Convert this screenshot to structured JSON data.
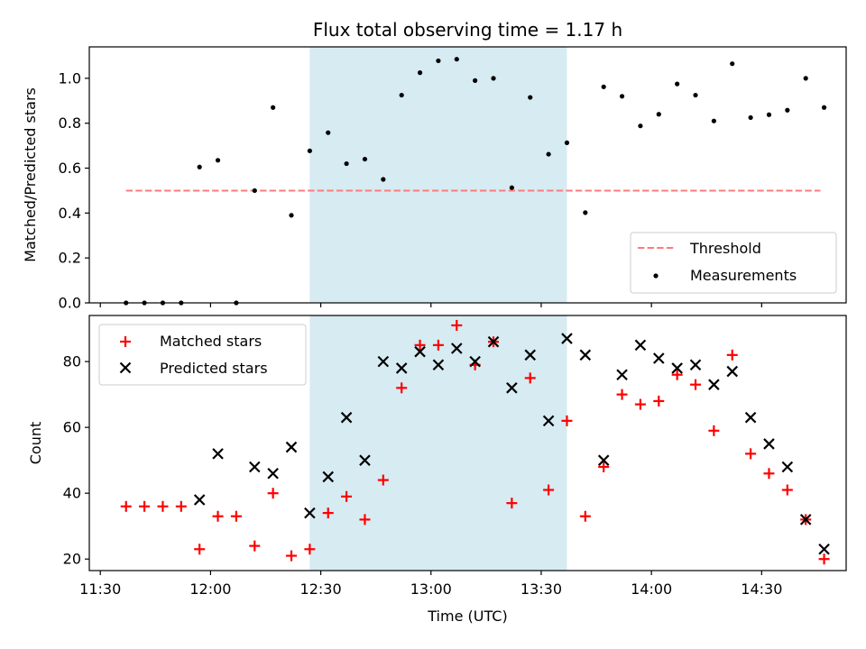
{
  "chart_data": [
    {
      "type": "scatter",
      "title": "Flux total observing time = 1.17 h",
      "xlabel": "",
      "ylabel": "Matched/Predicted stars",
      "xlim": [
        "11:27",
        "14:53"
      ],
      "ylim": [
        0,
        1.14
      ],
      "xticks": [
        "11:30",
        "12:00",
        "12:30",
        "13:00",
        "13:30",
        "14:00",
        "14:30"
      ],
      "yticks": [
        "0.0",
        "0.2",
        "0.4",
        "0.6",
        "0.8",
        "1.0"
      ],
      "shaded_region": {
        "start": "12:27",
        "end": "13:37",
        "color": "#add8e6"
      },
      "legend_position": "lower right",
      "threshold": {
        "name": "Threshold",
        "value": 0.5,
        "x_range": [
          "11:37",
          "14:46"
        ],
        "color": "#ff7b7b",
        "style": "dashed"
      },
      "series": [
        {
          "name": "Measurements",
          "color": "#000000",
          "marker": "dot",
          "x": [
            "11:37",
            "11:42",
            "11:47",
            "11:52",
            "11:57",
            "12:02",
            "12:07",
            "12:12",
            "12:17",
            "12:22",
            "12:27",
            "12:32",
            "12:37",
            "12:42",
            "12:47",
            "12:52",
            "12:57",
            "13:02",
            "13:07",
            "13:12",
            "13:17",
            "13:22",
            "13:27",
            "13:32",
            "13:37",
            "13:42",
            "13:47",
            "13:52",
            "13:57",
            "14:02",
            "14:07",
            "14:12",
            "14:17",
            "14:22",
            "14:27",
            "14:32",
            "14:37",
            "14:42",
            "14:47"
          ],
          "y": [
            0.0,
            0.0,
            0.0,
            0.0,
            0.605,
            0.635,
            0.0,
            0.5,
            0.87,
            0.39,
            0.677,
            0.758,
            0.62,
            0.64,
            0.55,
            0.925,
            1.025,
            1.078,
            1.085,
            0.99,
            1.0,
            0.513,
            0.915,
            0.662,
            0.713,
            0.402,
            0.962,
            0.92,
            0.788,
            0.84,
            0.975,
            0.925,
            0.81,
            1.065,
            0.825,
            0.838,
            0.858,
            1.0,
            0.87
          ]
        }
      ]
    },
    {
      "type": "scatter",
      "title": "",
      "xlabel": "Time (UTC)",
      "ylabel": "Count",
      "xlim": [
        "11:27",
        "14:53"
      ],
      "ylim": [
        16.5,
        94
      ],
      "xticks": [
        "11:30",
        "12:00",
        "12:30",
        "13:00",
        "13:30",
        "14:00",
        "14:30"
      ],
      "yticks": [
        "20",
        "40",
        "60",
        "80"
      ],
      "shaded_region": {
        "start": "12:27",
        "end": "13:37",
        "color": "#add8e6"
      },
      "legend_position": "upper left",
      "series": [
        {
          "name": "Matched stars",
          "color": "#ff0000",
          "marker": "plus",
          "x": [
            "11:37",
            "11:42",
            "11:47",
            "11:52",
            "11:57",
            "12:02",
            "12:07",
            "12:12",
            "12:17",
            "12:22",
            "12:27",
            "12:32",
            "12:37",
            "12:42",
            "12:47",
            "12:52",
            "12:57",
            "13:02",
            "13:07",
            "13:12",
            "13:17",
            "13:22",
            "13:27",
            "13:32",
            "13:37",
            "13:42",
            "13:47",
            "13:52",
            "13:57",
            "14:02",
            "14:07",
            "14:12",
            "14:17",
            "14:22",
            "14:27",
            "14:32",
            "14:37",
            "14:42",
            "14:47"
          ],
          "y": [
            36,
            36,
            36,
            36,
            23,
            33,
            33,
            24,
            40,
            21,
            23,
            34,
            39,
            32,
            44,
            72,
            85,
            85,
            91,
            79,
            86,
            37,
            75,
            41,
            62,
            33,
            48,
            70,
            67,
            68,
            76,
            73,
            59,
            82,
            52,
            46,
            41,
            32,
            20
          ]
        },
        {
          "name": "Predicted stars",
          "color": "#000000",
          "marker": "x",
          "x": [
            "11:57",
            "12:02",
            "12:12",
            "12:17",
            "12:22",
            "12:27",
            "12:32",
            "12:37",
            "12:42",
            "12:47",
            "12:52",
            "12:57",
            "13:02",
            "13:07",
            "13:12",
            "13:17",
            "13:22",
            "13:27",
            "13:32",
            "13:37",
            "13:42",
            "13:47",
            "13:52",
            "13:57",
            "14:02",
            "14:07",
            "14:12",
            "14:17",
            "14:22",
            "14:27",
            "14:32",
            "14:37",
            "14:42",
            "14:47"
          ],
          "y": [
            38,
            52,
            48,
            46,
            54,
            34,
            45,
            63,
            50,
            80,
            78,
            83,
            79,
            84,
            80,
            86,
            72,
            82,
            62,
            87,
            82,
            50,
            76,
            85,
            81,
            78,
            79,
            73,
            77,
            63,
            55,
            48,
            32,
            23
          ]
        }
      ]
    }
  ]
}
